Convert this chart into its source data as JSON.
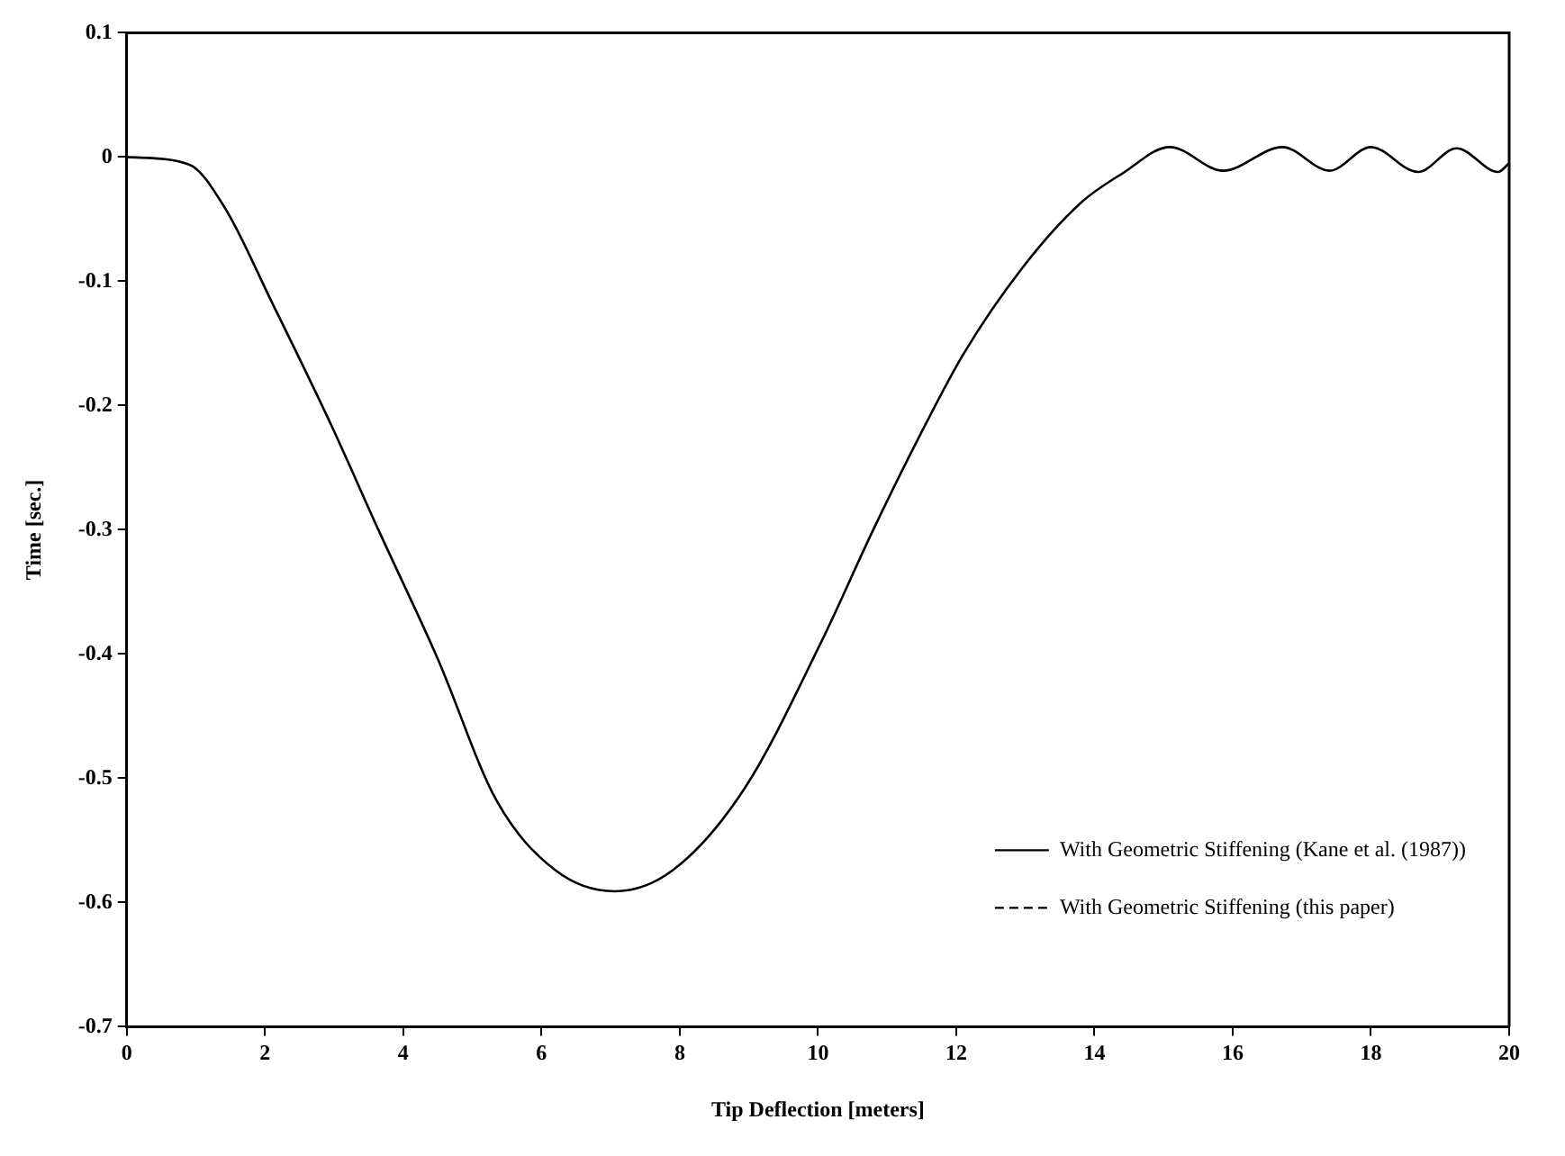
{
  "chart_data": {
    "type": "line",
    "xlabel": "Tip Deflection [meters]",
    "ylabel": "Time [sec.]",
    "xlim": [
      0,
      20
    ],
    "xticks": [
      0,
      2,
      4,
      6,
      8,
      10,
      12,
      14,
      16,
      18,
      20
    ],
    "ylim": [
      -0.7,
      0.1
    ],
    "yticks": [
      0.1,
      0,
      -0.1,
      -0.2,
      -0.3,
      -0.4,
      -0.5,
      -0.6,
      -0.7
    ],
    "grid": false,
    "legend": "bottom right",
    "marker": "none",
    "series": [
      {
        "name": "With Geometric Stiffening (Kane et al. (1987))",
        "color": "#000000",
        "line_style": "solid",
        "x": [
          0,
          0.9,
          1.42,
          2.1,
          2.96,
          3.64,
          4.5,
          5.35,
          6.2,
          7.06,
          7.9,
          8.94,
          10.05,
          10.8,
          11.42,
          12.1,
          12.96,
          13.8,
          14.41,
          15.09,
          15.86,
          16.72,
          17.4,
          18.0,
          18.68,
          19.24,
          19.84,
          20
        ],
        "values": [
          0,
          -0.006,
          -0.041,
          -0.117,
          -0.216,
          -0.3,
          -0.404,
          -0.518,
          -0.574,
          -0.591,
          -0.574,
          -0.508,
          -0.39,
          -0.3,
          -0.23,
          -0.159,
          -0.089,
          -0.037,
          -0.013,
          0.008,
          -0.011,
          0.008,
          -0.011,
          0.008,
          -0.012,
          0.007,
          -0.012,
          -0.005
        ]
      },
      {
        "name": "With Geometric Stiffening (this paper)",
        "color": "#000000",
        "line_style": "dashed"
      }
    ]
  }
}
